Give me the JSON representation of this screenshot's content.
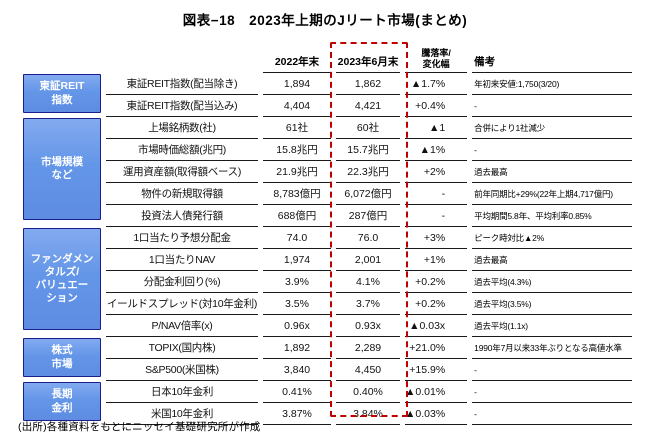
{
  "title": "図表−18　2023年上期のJリート市場(まとめ)",
  "source": "(出所)各種資料をもとにニッセイ基礎研究所が作成",
  "colors": {
    "highlight_dashed_box": "#c00000",
    "group_box_fill": "#6496e8",
    "group_box_border": "#1b1e8c",
    "table_line": "#1a1a1a"
  },
  "columns": {
    "group": "",
    "year2022": "2022年末",
    "year2023": "2023年6月末",
    "change": "騰落率/\n変化幅",
    "remarks": "備考"
  },
  "groups": [
    {
      "label": "東証REIT\n指数",
      "rowspan": 2
    },
    {
      "label": "市場規模\nなど",
      "rowspan": 5
    },
    {
      "label": "ファンダメン\nタルズ/\nバリュエー\nション",
      "rowspan": 5
    },
    {
      "label": "株式\n市場",
      "rowspan": 2
    },
    {
      "label": "長期\n金利",
      "rowspan": 2
    }
  ],
  "rows": [
    {
      "item": "東証REIT指数(配当除き)",
      "v2022": "1,894",
      "v2023": "1,862",
      "change": "▲1.7%",
      "remark": "年初来安値:1,750(3/20)"
    },
    {
      "item": "東証REIT指数(配当込み)",
      "v2022": "4,404",
      "v2023": "4,421",
      "change": "+0.4%",
      "remark": "-"
    },
    {
      "item": "上場銘柄数(社)",
      "v2022": "61社",
      "v2023": "60社",
      "change": "▲1",
      "remark": "合併により1社減少"
    },
    {
      "item": "市場時価総額(兆円)",
      "v2022": "15.8兆円",
      "v2023": "15.7兆円",
      "change": "▲1%",
      "remark": "-"
    },
    {
      "item": "運用資産額(取得額ベース)",
      "v2022": "21.9兆円",
      "v2023": "22.3兆円",
      "change": "+2%",
      "remark": "過去最高"
    },
    {
      "item": "物件の新規取得額",
      "v2022": "8,783億円",
      "v2023": "6,072億円",
      "change": "-",
      "remark": "前年同期比+29%(22年上期4,717億円)"
    },
    {
      "item": "投資法人債発行額",
      "v2022": "688億円",
      "v2023": "287億円",
      "change": "-",
      "remark": "平均期間5.8年、平均利率0.85%"
    },
    {
      "item": "1口当たり予想分配金",
      "v2022": "74.0",
      "v2023": "76.0",
      "change": "+3%",
      "remark": "ピーク時対比▲2%"
    },
    {
      "item": "1口当たりNAV",
      "v2022": "1,974",
      "v2023": "2,001",
      "change": "+1%",
      "remark": "過去最高"
    },
    {
      "item": "分配金利回り(%)",
      "v2022": "3.9%",
      "v2023": "4.1%",
      "change": "+0.2%",
      "remark": "過去平均(4.3%)"
    },
    {
      "item": "イールドスプレッド(対10年金利)",
      "v2022": "3.5%",
      "v2023": "3.7%",
      "change": "+0.2%",
      "remark": "過去平均(3.5%)"
    },
    {
      "item": "P/NAV倍率(x)",
      "v2022": "0.96x",
      "v2023": "0.93x",
      "change": "▲0.03x",
      "remark": "過去平均(1.1x)"
    },
    {
      "item": "TOPIX(国内株)",
      "v2022": "1,892",
      "v2023": "2,289",
      "change": "+21.0%",
      "remark": "1990年7月以来33年ぶりとなる高値水準"
    },
    {
      "item": "S&P500(米国株)",
      "v2022": "3,840",
      "v2023": "4,450",
      "change": "+15.9%",
      "remark": "-"
    },
    {
      "item": "日本10年金利",
      "v2022": "0.41%",
      "v2023": "0.40%",
      "change": "▲0.01%",
      "remark": "-"
    },
    {
      "item": "米国10年金利",
      "v2022": "3.87%",
      "v2023": "3.84%",
      "change": "▲0.03%",
      "remark": "-"
    }
  ]
}
